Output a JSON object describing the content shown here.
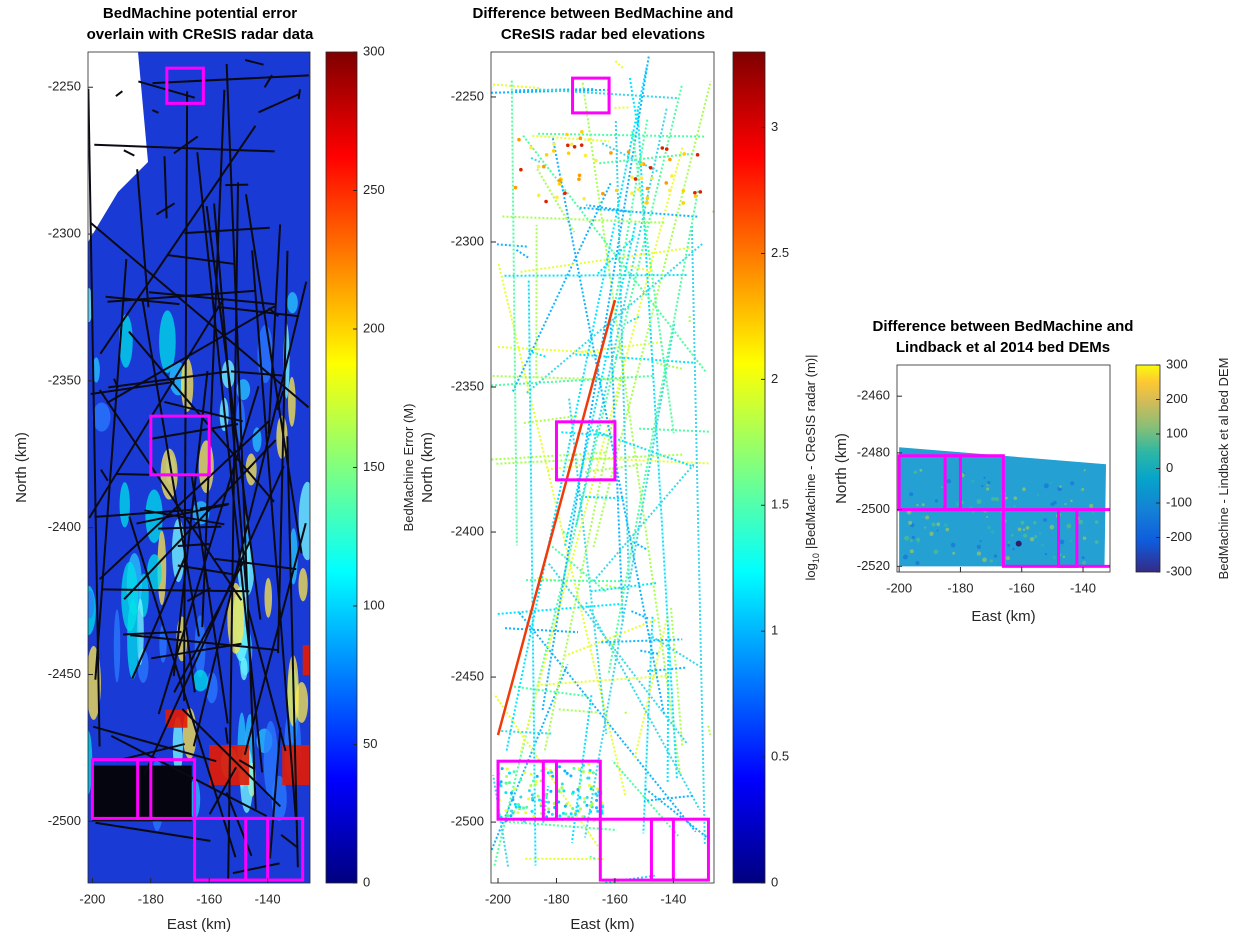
{
  "chart_data": [
    {
      "type": "heatmap",
      "title": [
        "BedMachine potential error",
        "overlain with CReSIS radar data"
      ],
      "xlabel": "East (km)",
      "ylabel": "North (km)",
      "xlim": [
        -201.5,
        -125.5
      ],
      "ylim": [
        -2521,
        -2238
      ],
      "xticks": [
        -200,
        -180,
        -160,
        -140
      ],
      "yticks": [
        -2500,
        -2450,
        -2400,
        -2350,
        -2300,
        -2250
      ],
      "colorbar": {
        "label": "BedMachine Error (M)",
        "lim": [
          0,
          300
        ],
        "ticks": [
          0,
          50,
          100,
          150,
          200,
          250,
          300
        ],
        "colormap": "jet"
      },
      "region_color": "#ff00ff",
      "regions": [
        [
          -174.5,
          -162,
          -2243.5,
          -2255.5
        ],
        [
          -180,
          -160,
          -2362,
          -2382
        ],
        [
          -200,
          -180,
          -2479,
          -2499
        ],
        [
          -184.5,
          -165,
          -2479,
          -2499
        ],
        [
          -165,
          -140,
          -2499,
          -2520
        ],
        [
          -147.5,
          -128,
          -2499,
          -2520
        ]
      ]
    },
    {
      "type": "scatter-tracks",
      "title": [
        "Difference between BedMachine and",
        "CReSIS radar bed elevations"
      ],
      "xlabel": "East (km)",
      "ylabel": "North (km)",
      "xlim": [
        -202.4,
        -126.1
      ],
      "ylim": [
        -2521,
        -2234.5
      ],
      "xticks": [
        -200,
        -180,
        -160,
        -140
      ],
      "yticks": [
        -2500,
        -2450,
        -2400,
        -2350,
        -2300,
        -2250
      ],
      "colorbar": {
        "label_prefix": "log",
        "label_sub": "10",
        "label": "|BedMachine - CReSIS radar (m)|",
        "lim": [
          0,
          3.3
        ],
        "ticks": [
          0,
          0.5,
          1,
          1.5,
          2,
          2.5,
          3
        ],
        "colormap": "jet"
      },
      "region_color": "#ff00ff",
      "regions": [
        [
          -174.5,
          -162,
          -2243.5,
          -2255.5
        ],
        [
          -180,
          -160,
          -2362,
          -2382
        ],
        [
          -200,
          -180,
          -2479,
          -2499
        ],
        [
          -184.5,
          -165,
          -2479,
          -2499
        ],
        [
          -165,
          -140,
          -2499,
          -2520
        ],
        [
          -147.5,
          -128,
          -2499,
          -2520
        ]
      ]
    },
    {
      "type": "heatmap-small",
      "title": [
        "Difference between BedMachine and",
        "Lindback et al 2014 bed DEMs"
      ],
      "xlabel": "East (km)",
      "ylabel": "North (km)",
      "xlim": [
        -200.7,
        -131.2
      ],
      "ylim": [
        -2522,
        -2449
      ],
      "xticks": [
        -200,
        -180,
        -160,
        -140
      ],
      "yticks": [
        -2520,
        -2500,
        -2480,
        -2460
      ],
      "colorbar": {
        "label": "BedMachine - Lindback et al bed DEM",
        "lim": [
          -300,
          300
        ],
        "ticks": [
          -300,
          -200,
          -100,
          0,
          100,
          200,
          300
        ],
        "colormap": "parula"
      },
      "region_color": "#ff00ff",
      "regions": [
        [
          -200,
          -180,
          -2481,
          -2500
        ],
        [
          -185,
          -166,
          -2481,
          -2500
        ],
        [
          -166,
          -142,
          -2500,
          -2520
        ],
        [
          -148,
          -130,
          -2500,
          -2520
        ]
      ]
    }
  ]
}
